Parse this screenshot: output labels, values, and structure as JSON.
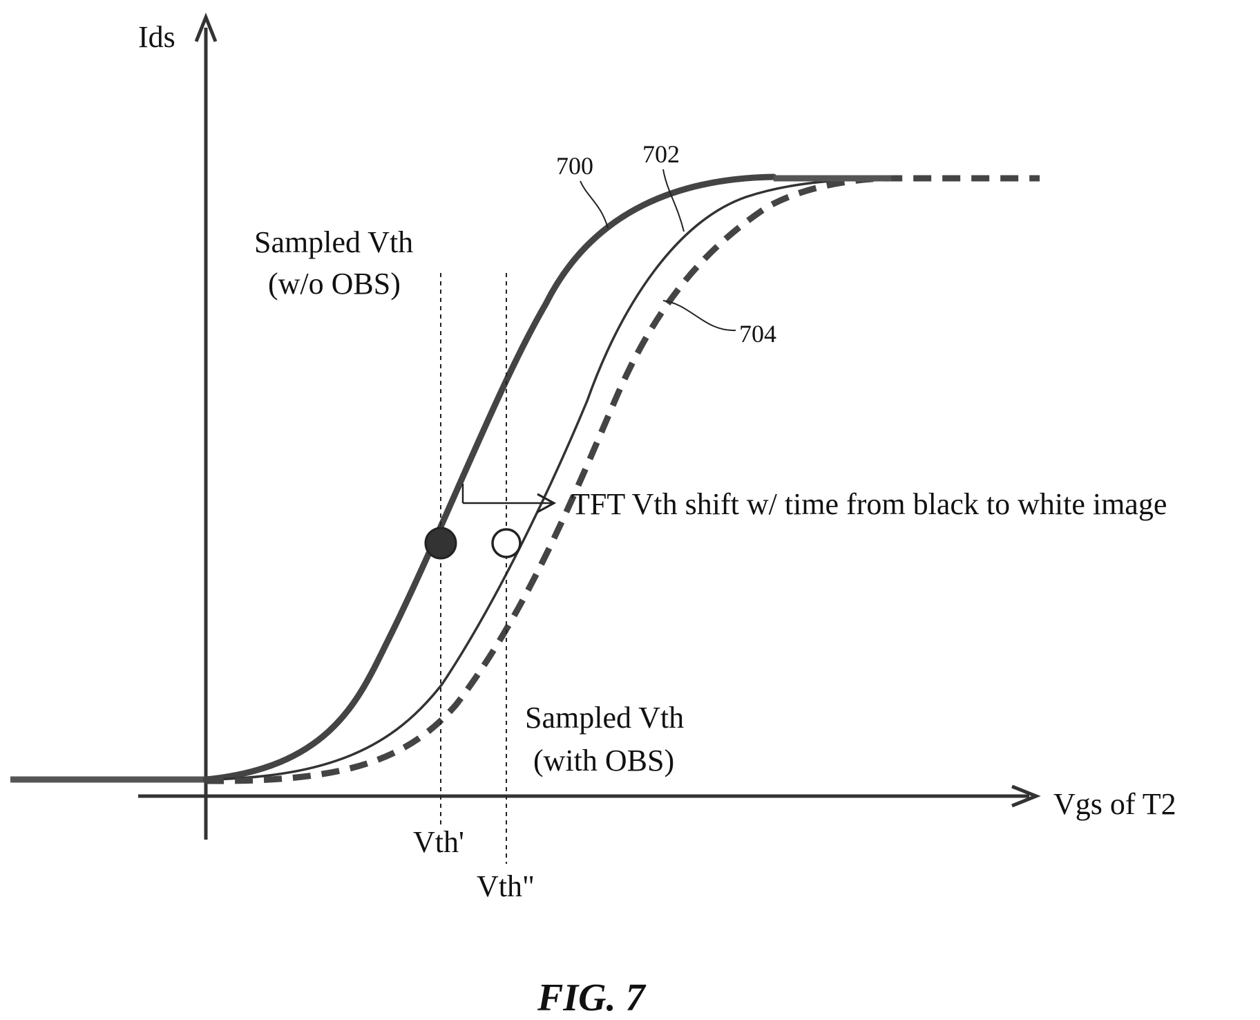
{
  "figure_label": "FIG. 7",
  "axes": {
    "y_label": "Ids",
    "x_label": "Vgs of T2"
  },
  "curves": [
    {
      "ref": "700",
      "style": "thick solid"
    },
    {
      "ref": "702",
      "style": "thin solid"
    },
    {
      "ref": "704",
      "style": "thick dashed"
    }
  ],
  "annotations": {
    "sampled_wo_obs_line1": "Sampled Vth",
    "sampled_wo_obs_line2": "(w/o OBS)",
    "sampled_with_obs_line1": "Sampled Vth",
    "sampled_with_obs_line2": "(with OBS)",
    "shift_text": "TFT Vth shift w/ time from black to white image",
    "vth_prime": "Vth'",
    "vth_double_prime": "Vth\""
  },
  "markers": [
    {
      "name": "filled-marker",
      "fill": "#333333"
    },
    {
      "name": "open-marker",
      "fill": "#ffffff"
    }
  ]
}
